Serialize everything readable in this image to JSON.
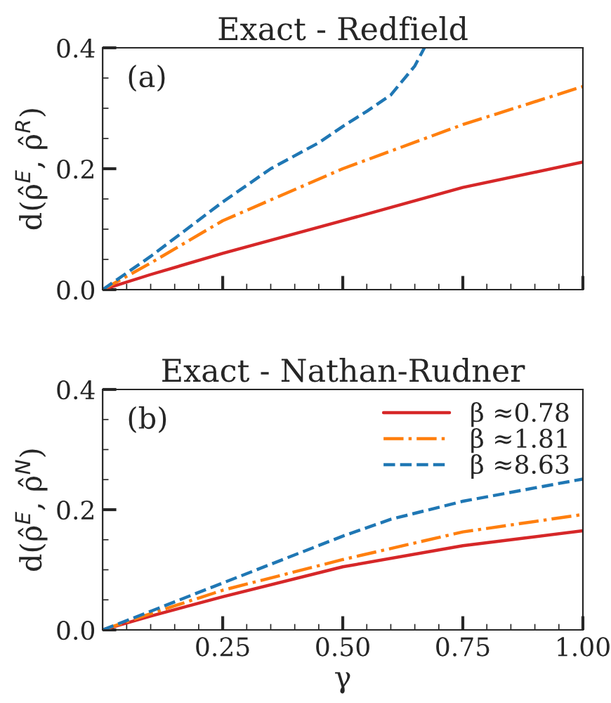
{
  "chart_data": [
    {
      "type": "line",
      "title": "Exact - Redfield",
      "ylabel": "d(ρ̂$^{E}$, ρ̂$^{R}$)",
      "annotations": [
        "(a)"
      ],
      "xlim": [
        0,
        1
      ],
      "ylim": [
        0,
        0.4
      ],
      "xticks": [
        0.25,
        0.5,
        0.75,
        1.0
      ],
      "yticks": [
        {
          "value": 0,
          "label": "0.0"
        },
        {
          "value": 0.2,
          "label": "0.2"
        },
        {
          "value": 0.4,
          "label": "0.4"
        }
      ],
      "tick_labels": "y",
      "grid": false,
      "legend": false,
      "series": [
        {
          "color": "#d62728",
          "line_style": "solid",
          "x": [
            0,
            0.1,
            0.25,
            0.5,
            0.75,
            1.0
          ],
          "values": [
            0,
            0.025,
            0.06,
            0.114,
            0.169,
            0.211
          ]
        },
        {
          "color": "#ff7f0e",
          "line_style": "dashdot",
          "x": [
            0,
            0.1,
            0.25,
            0.5,
            0.75,
            1.0
          ],
          "values": [
            0,
            0.044,
            0.114,
            0.2,
            0.273,
            0.336
          ]
        },
        {
          "color": "#1f77b4",
          "line_style": "dashed",
          "x": [
            0,
            0.1,
            0.25,
            0.35,
            0.45,
            0.5,
            0.55,
            0.6,
            0.65,
            0.67
          ],
          "values": [
            0,
            0.055,
            0.145,
            0.2,
            0.243,
            0.27,
            0.295,
            0.322,
            0.37,
            0.4
          ]
        }
      ]
    },
    {
      "type": "line",
      "title": "Exact - Nathan-Rudner",
      "xlabel": "γ",
      "ylabel": "d(ρ̂$^{E}$, ρ̂$^{N}$)",
      "annotations": [
        "(b)"
      ],
      "xlim": [
        0,
        1
      ],
      "ylim": [
        0,
        0.4
      ],
      "xticks": [
        {
          "value": 0.25,
          "label": "0.25"
        },
        {
          "value": 0.5,
          "label": "0.50"
        },
        {
          "value": 0.75,
          "label": "0.75"
        },
        {
          "value": 1.0,
          "label": "1.00"
        }
      ],
      "yticks": [
        {
          "value": 0,
          "label": "0.0"
        },
        {
          "value": 0.2,
          "label": "0.2"
        },
        {
          "value": 0.4,
          "label": "0.4"
        }
      ],
      "grid": false,
      "legend": "top right",
      "series": [
        {
          "name": "β ≈0.78",
          "color": "#d62728",
          "line_style": "solid",
          "x": [
            0,
            0.1,
            0.25,
            0.5,
            0.75,
            1.0
          ],
          "values": [
            0,
            0.023,
            0.055,
            0.105,
            0.14,
            0.165
          ]
        },
        {
          "name": "β ≈1.81",
          "color": "#ff7f0e",
          "line_style": "dashdot",
          "x": [
            0,
            0.1,
            0.25,
            0.5,
            0.75,
            1.0
          ],
          "values": [
            0,
            0.027,
            0.066,
            0.117,
            0.163,
            0.192
          ]
        },
        {
          "name": "β ≈8.63",
          "color": "#1f77b4",
          "line_style": "dashed",
          "x": [
            0,
            0.1,
            0.25,
            0.5,
            0.6,
            0.75,
            1.0
          ],
          "values": [
            0,
            0.031,
            0.078,
            0.156,
            0.184,
            0.214,
            0.251
          ]
        }
      ]
    }
  ]
}
